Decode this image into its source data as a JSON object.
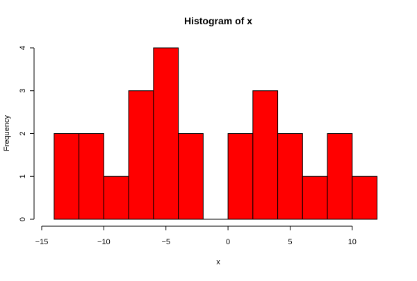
{
  "chart_data": {
    "type": "bar",
    "title": "Histogram of x",
    "xlabel": "x",
    "ylabel": "Frequency",
    "bin_edges": [
      -14,
      -12,
      -10,
      -8,
      -6,
      -4,
      -2,
      0,
      2,
      4,
      6,
      8,
      10,
      12
    ],
    "values": [
      2,
      2,
      1,
      3,
      4,
      2,
      0,
      2,
      3,
      2,
      1,
      2,
      1
    ],
    "xlim": [
      -15,
      12.5
    ],
    "ylim": [
      0,
      4
    ],
    "x_ticks": [
      -15,
      -10,
      -5,
      0,
      5,
      10
    ],
    "x_tick_labels": [
      "−15",
      "−10",
      "−5",
      "0",
      "5",
      "10"
    ],
    "y_ticks": [
      0,
      1,
      2,
      3,
      4
    ],
    "y_tick_labels": [
      "0",
      "1",
      "2",
      "3",
      "4"
    ],
    "bar_color": "#ff0000",
    "edge_color": "#000000",
    "grid": false
  }
}
